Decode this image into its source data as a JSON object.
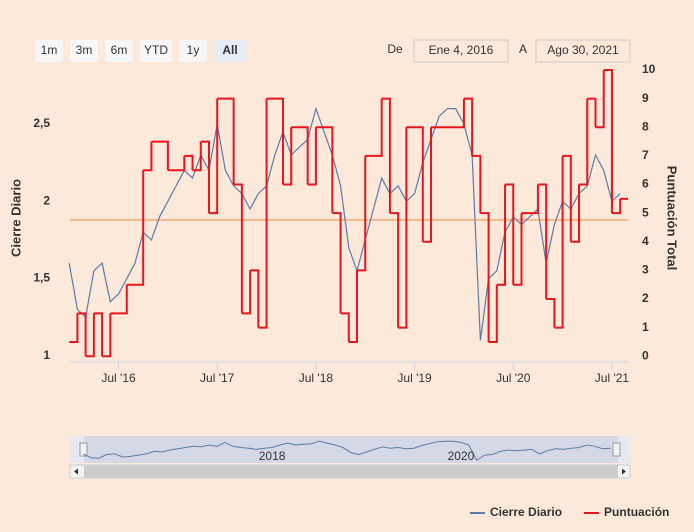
{
  "chart_data": {
    "type": "line",
    "range_selector": {
      "buttons": [
        "1m",
        "3m",
        "6m",
        "YTD",
        "1y",
        "All"
      ],
      "from_label": "De",
      "from": "Ene 4, 2016",
      "to_label": "A",
      "to": "Ago 30, 2021"
    },
    "y_label": "Cierre Diario",
    "y2_label": "Puntuación Total",
    "xlim": [
      "2016-01-04",
      "2021-08-30"
    ],
    "xticks": [
      {
        "value": "2016-07",
        "label": "Jul '16"
      },
      {
        "value": "2017-07",
        "label": "Jul '17"
      },
      {
        "value": "2018-07",
        "label": "Jul '18"
      },
      {
        "value": "2019-07",
        "label": "Jul '19"
      },
      {
        "value": "2020-07",
        "label": "Jul '20"
      },
      {
        "value": "2021-07",
        "label": "Jul '21"
      }
    ],
    "ylim": [
      0.96,
      2.85
    ],
    "yticks": [
      1,
      {
        "value": 1.5,
        "label": "1,5"
      },
      2,
      {
        "value": 2.5,
        "label": "2,5"
      }
    ],
    "y2lim": [
      -0.2,
      10
    ],
    "y2ticks": [
      0,
      1,
      2,
      3,
      4,
      5,
      6,
      7,
      8,
      9,
      10
    ],
    "plot_line": {
      "value": 1.88,
      "color": "#f3b98a"
    },
    "navigator_ticks": [
      {
        "value": "2018-01",
        "label": "2018"
      },
      {
        "value": "2020-01",
        "label": "2020"
      }
    ],
    "series": [
      {
        "name": "Cierre Diario",
        "color": "#5b7bab",
        "x": [
          "2016-01",
          "2016-02",
          "2016-03",
          "2016-04",
          "2016-05",
          "2016-06",
          "2016-07",
          "2016-08",
          "2016-09",
          "2016-10",
          "2016-11",
          "2016-12",
          "2017-01",
          "2017-02",
          "2017-03",
          "2017-04",
          "2017-05",
          "2017-06",
          "2017-07",
          "2017-08",
          "2017-09",
          "2017-10",
          "2017-11",
          "2017-12",
          "2018-01",
          "2018-02",
          "2018-03",
          "2018-04",
          "2018-05",
          "2018-06",
          "2018-07",
          "2018-08",
          "2018-09",
          "2018-10",
          "2018-11",
          "2018-12",
          "2019-01",
          "2019-02",
          "2019-03",
          "2019-04",
          "2019-05",
          "2019-06",
          "2019-07",
          "2019-08",
          "2019-09",
          "2019-10",
          "2019-11",
          "2019-12",
          "2020-01",
          "2020-02",
          "2020-03",
          "2020-04",
          "2020-05",
          "2020-06",
          "2020-07",
          "2020-08",
          "2020-09",
          "2020-10",
          "2020-11",
          "2020-12",
          "2021-01",
          "2021-02",
          "2021-03",
          "2021-04",
          "2021-05",
          "2021-06",
          "2021-07",
          "2021-08"
        ],
        "values": [
          1.6,
          1.3,
          1.25,
          1.55,
          1.6,
          1.35,
          1.4,
          1.5,
          1.6,
          1.8,
          1.75,
          1.9,
          2.0,
          2.1,
          2.2,
          2.15,
          2.3,
          2.2,
          2.5,
          2.2,
          2.1,
          2.05,
          1.95,
          2.05,
          2.1,
          2.3,
          2.45,
          2.3,
          2.35,
          2.4,
          2.6,
          2.45,
          2.3,
          2.1,
          1.7,
          1.55,
          1.75,
          1.95,
          2.15,
          2.05,
          2.1,
          2.0,
          2.05,
          2.25,
          2.4,
          2.55,
          2.6,
          2.6,
          2.5,
          2.3,
          1.1,
          1.5,
          1.55,
          1.8,
          1.9,
          1.85,
          1.9,
          1.95,
          1.6,
          1.85,
          2.0,
          1.95,
          2.05,
          2.1,
          2.3,
          2.2,
          2.0,
          2.05
        ]
      },
      {
        "name": "Puntuación",
        "color": "#e8141e",
        "axis": "y2",
        "step": true,
        "x": [
          "2016-01",
          "2016-02",
          "2016-03",
          "2016-04",
          "2016-05",
          "2016-06",
          "2016-08",
          "2016-10",
          "2016-11",
          "2017-01",
          "2017-03",
          "2017-04",
          "2017-05",
          "2017-06",
          "2017-07",
          "2017-09",
          "2017-10",
          "2017-11",
          "2017-12",
          "2018-01",
          "2018-03",
          "2018-04",
          "2018-06",
          "2018-07",
          "2018-09",
          "2018-10",
          "2018-11",
          "2018-12",
          "2019-01",
          "2019-03",
          "2019-04",
          "2019-05",
          "2019-06",
          "2019-08",
          "2019-09",
          "2020-01",
          "2020-02",
          "2020-03",
          "2020-04",
          "2020-05",
          "2020-06",
          "2020-07",
          "2020-08",
          "2020-10",
          "2020-11",
          "2020-12",
          "2021-01",
          "2021-02",
          "2021-03",
          "2021-04",
          "2021-05",
          "2021-06",
          "2021-07",
          "2021-08"
        ],
        "values": [
          0.5,
          1.5,
          0,
          1.5,
          0,
          1.5,
          2.5,
          6.5,
          7.5,
          6.5,
          7,
          6.5,
          7.5,
          5,
          9,
          6,
          1.5,
          3,
          1,
          9,
          6,
          8,
          6,
          8,
          5,
          1.5,
          0.5,
          3,
          7,
          9,
          5,
          1,
          8,
          4,
          8,
          9,
          7,
          5,
          0.5,
          2.5,
          6,
          2.5,
          5,
          6,
          2,
          1,
          7,
          4,
          6,
          9,
          8,
          10,
          5,
          5.5
        ]
      }
    ]
  }
}
